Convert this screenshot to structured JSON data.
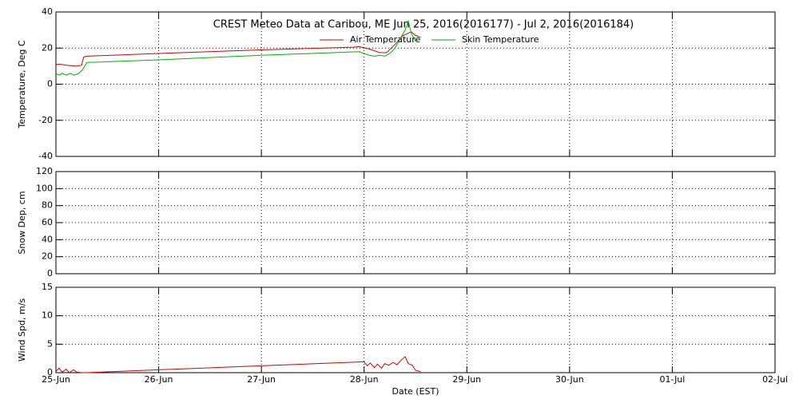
{
  "chart_data": [
    {
      "type": "line",
      "title": "CREST Meteo Data at Caribou, ME   Jun 25, 2016(2016177) - Jul  2, 2016(2016184)",
      "ylabel": "Temperature, Deg C",
      "xlim": [
        0,
        7
      ],
      "xticks": [
        0,
        1,
        2,
        3,
        4,
        5,
        6,
        7
      ],
      "ylim": [
        -40,
        40
      ],
      "yticks": [
        -40,
        -20,
        0,
        20,
        40
      ],
      "grid": true,
      "legend": "top",
      "series": [
        {
          "name": "Air Temperature",
          "color": "#d00000",
          "x": [
            0,
            0.05,
            0.1,
            0.2,
            0.25,
            0.27,
            0.3,
            1,
            2,
            2.9,
            2.95,
            3.05,
            3.15,
            3.22,
            3.3,
            3.38,
            3.42,
            3.46,
            3.5,
            3.55
          ],
          "values": [
            11,
            11,
            10.5,
            10,
            10.5,
            15,
            15.5,
            17,
            19,
            20.5,
            20.8,
            19.5,
            17.5,
            17.5,
            22,
            27,
            28,
            29,
            27,
            26
          ]
        },
        {
          "name": "Skin Temperature",
          "color": "#00b000",
          "x": [
            0,
            0.03,
            0.06,
            0.1,
            0.14,
            0.18,
            0.22,
            0.26,
            0.3,
            1,
            2,
            2.95,
            3.0,
            3.05,
            3.1,
            3.15,
            3.2,
            3.25,
            3.3,
            3.35,
            3.4,
            3.43,
            3.46,
            3.5,
            3.55
          ],
          "values": [
            6,
            5,
            6,
            5,
            6,
            5,
            6,
            8,
            12,
            13.5,
            16,
            18,
            17,
            16,
            15.5,
            16,
            15.5,
            17,
            20,
            25,
            30,
            35,
            28,
            24,
            25
          ]
        }
      ]
    },
    {
      "type": "line",
      "ylabel": "Snow Dep, cm",
      "xlim": [
        0,
        7
      ],
      "xticks": [
        0,
        1,
        2,
        3,
        4,
        5,
        6,
        7
      ],
      "ylim": [
        0,
        120
      ],
      "yticks": [
        0,
        20,
        40,
        60,
        80,
        100,
        120
      ],
      "grid": true,
      "series": []
    },
    {
      "type": "line",
      "ylabel": "Wind Spd, m/s",
      "xlabel": "Date (EST)",
      "xlim": [
        0,
        7
      ],
      "xticks": [
        {
          "value": 0,
          "label": "25-Jun"
        },
        {
          "value": 1,
          "label": "26-Jun"
        },
        {
          "value": 2,
          "label": "27-Jun"
        },
        {
          "value": 3,
          "label": "28-Jun"
        },
        {
          "value": 4,
          "label": "29-Jun"
        },
        {
          "value": 5,
          "label": "30-Jun"
        },
        {
          "value": 6,
          "label": "01-Jul"
        },
        {
          "value": 7,
          "label": "02-Jul"
        }
      ],
      "ylim": [
        0,
        15
      ],
      "yticks": [
        0,
        5,
        10,
        15
      ],
      "grid": true,
      "series": [
        {
          "color": "#d00000",
          "x": [
            0,
            0.03,
            0.06,
            0.1,
            0.13,
            0.17,
            0.2,
            0.25,
            0.3,
            1,
            2,
            3,
            3.03,
            3.06,
            3.1,
            3.13,
            3.17,
            3.2,
            3.24,
            3.28,
            3.32,
            3.36,
            3.4,
            3.43,
            3.47,
            3.5,
            3.55
          ],
          "values": [
            0.2,
            0.8,
            0.1,
            0.6,
            0,
            0.5,
            0.1,
            0,
            0,
            0.5,
            1.2,
            1.9,
            1.2,
            1.7,
            0.9,
            1.5,
            0.8,
            1.6,
            1.3,
            1.8,
            1.4,
            2.2,
            2.8,
            1.6,
            1.3,
            0.4,
            0.2
          ]
        }
      ]
    }
  ]
}
